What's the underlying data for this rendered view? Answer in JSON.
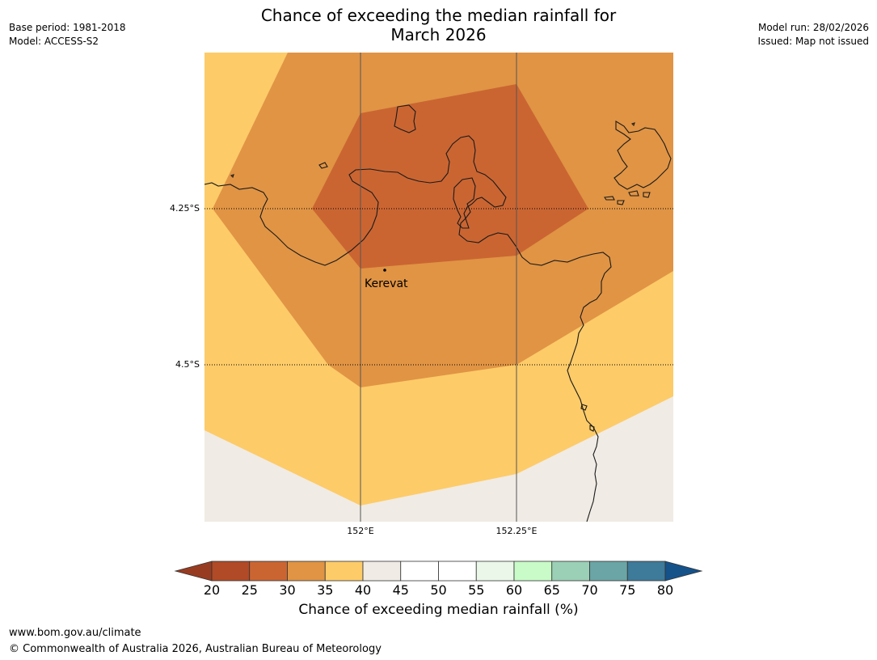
{
  "title": {
    "line1": "Chance of exceeding the median rainfall for",
    "line2": "March 2026"
  },
  "meta_left": {
    "base_period": "Base period: 1981-2018",
    "model": "Model: ACCESS-S2"
  },
  "meta_right": {
    "model_run": "Model run: 28/02/2026",
    "issued": "Issued: Map not issued"
  },
  "map": {
    "place_label": "Kerevat",
    "lat_labels": [
      "4.25°S",
      "4.5°S"
    ],
    "lon_labels": [
      "152°E",
      "152.25°E"
    ],
    "colors": {
      "c20_25": "#b14a27",
      "c25_30": "#ca6532",
      "c30_35": "#e09444",
      "c35_40": "#fdcb68",
      "c40_45": "#f0ebe4",
      "outline": "#1a1a1a"
    }
  },
  "colorbar": {
    "label": "Chance of exceeding median rainfall (%)",
    "ticks": [
      "20",
      "25",
      "30",
      "35",
      "40",
      "45",
      "50",
      "55",
      "60",
      "65",
      "70",
      "75",
      "80"
    ],
    "under_color": "#983c21",
    "over_color": "#15528a",
    "segment_colors": [
      "#b14a27",
      "#ca6532",
      "#e09444",
      "#fdcb68",
      "#f0ebe4",
      "#ffffff",
      "#ffffff",
      "#eaf7e9",
      "#c8fbc8",
      "#9bcfb6",
      "#6ba5a5",
      "#3e7a99"
    ]
  },
  "footer": {
    "url": "www.bom.gov.au/climate",
    "copyright": "© Commonwealth of Australia 2026, Australian Bureau of Meteorology"
  }
}
